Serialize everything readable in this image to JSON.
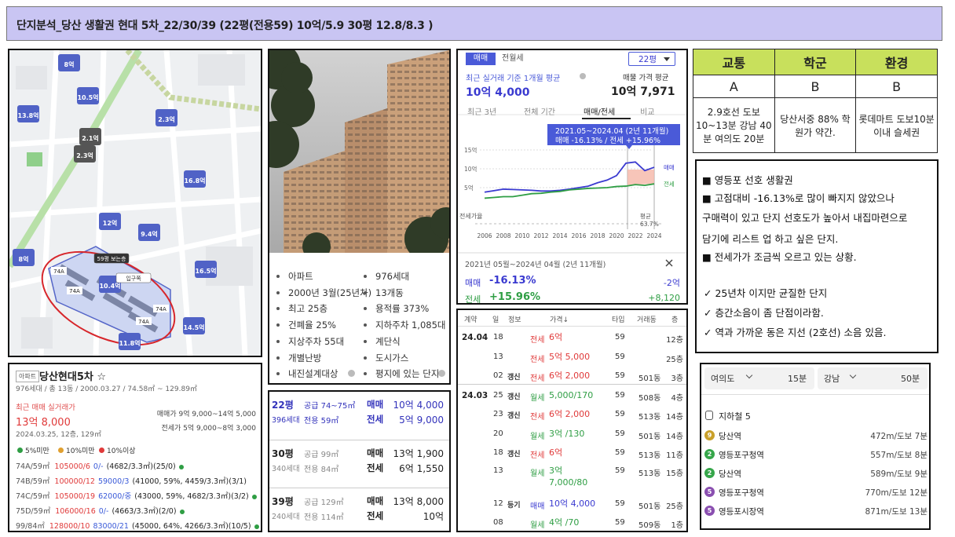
{
  "header": {
    "title": "단지분석_당산 생활권 현대 5차_22/30/39 (22평(전용59) 10억/5.9 30평 12.8/8.3 )"
  },
  "map": {
    "markers": [
      "13.8억",
      "8억",
      "10.5억",
      "2.3억",
      "2.1억",
      "2.3억",
      "16.8억",
      "12억",
      "9.4억",
      "8억",
      "16.5억",
      "10.4억",
      "14.5억",
      "11.8억"
    ],
    "building_labels": [
      "74A",
      "74A",
      "74A",
      "74A"
    ],
    "tags": [
      "59평 보는층",
      "입구쪽"
    ]
  },
  "facts": [
    [
      "아파트",
      "976세대"
    ],
    [
      "2000년 3월(25년차)",
      "13개동"
    ],
    [
      "최고 25층",
      "용적률 373%"
    ],
    [
      "건폐율 25%",
      "지하주차 1,085대"
    ],
    [
      "지상주차 55대",
      "계단식"
    ],
    [
      "개별난방",
      "도시가스"
    ],
    [
      "내진설계대상",
      "평지에 있는 단지"
    ]
  ],
  "market": {
    "tabs": [
      "매매",
      "전월세"
    ],
    "size": "22평",
    "recent_label": "최근 실거래 기준 1개월 평균",
    "recent_price": "10억 4,000",
    "listing_label": "매물 가격 평균",
    "listing_price": "10억 7,971",
    "periods": [
      "최근 3년",
      "전체 기간",
      "매매/전세",
      "비교"
    ],
    "chart": {
      "type": "line",
      "tooltip_period": "2021.05~2024.04 (2년 11개월)",
      "tooltip_change": "매매 -16.13% / 전세 +15.96%",
      "x": [
        2006,
        2007,
        2008,
        2009,
        2010,
        2011,
        2012,
        2013,
        2014,
        2015,
        2016,
        2017,
        2018,
        2019,
        2020,
        2021,
        2022,
        2023,
        2024
      ],
      "xlim": [
        2005,
        2025
      ],
      "xticks": [
        2006,
        2008,
        2010,
        2012,
        2014,
        2016,
        2018,
        2020,
        2022,
        2024
      ],
      "ylim": [
        0,
        17
      ],
      "yticks": [
        {
          "value": 15,
          "label": "15억"
        },
        {
          "value": 10,
          "label": "10억"
        },
        {
          "value": 5,
          "label": "5억"
        }
      ],
      "series": [
        {
          "name": "매매",
          "color": "#3a3ad0",
          "values": [
            3.8,
            4.2,
            4.6,
            4.5,
            4.4,
            4.3,
            4.1,
            4.1,
            4.3,
            4.6,
            5.0,
            5.4,
            6.3,
            7.0,
            8.2,
            11.5,
            11.8,
            9.5,
            10.4
          ]
        },
        {
          "name": "전세",
          "color": "#2f9e44",
          "values": [
            2.2,
            2.4,
            2.6,
            2.6,
            3.0,
            3.4,
            3.5,
            3.8,
            4.0,
            4.4,
            4.6,
            4.8,
            4.9,
            5.0,
            5.3,
            5.4,
            5.8,
            5.6,
            6.0
          ]
        }
      ],
      "ratio_label": "전세가율",
      "ratio_average": "평균 63.7%"
    },
    "summary": {
      "period": "2021년 05월~2024년 04월 (2년 11개월)",
      "rows": [
        {
          "label": "매매",
          "rate": "-16.13%",
          "amount": "-2억",
          "color": "#3a3ad0"
        },
        {
          "label": "전세",
          "rate": "+15.96%",
          "amount": "+8,120",
          "color": "#2f9e44"
        }
      ]
    }
  },
  "transactions": {
    "headers": [
      "계약",
      "일",
      "정보",
      "가격↓",
      "타입",
      "거래동",
      "층"
    ],
    "rows": [
      {
        "month": "24.04",
        "day": "18",
        "kind": "전세",
        "price": "6억",
        "type": "59",
        "floor": "12층"
      },
      {
        "day": "13",
        "kind": "전세",
        "price": "5억 5,000",
        "type": "59",
        "floor": "25층"
      },
      {
        "day": "02",
        "info": "갱신",
        "kind": "전세",
        "price": "6억 2,000",
        "type": "59",
        "building": "501동",
        "floor": "3층"
      },
      {
        "month": "24.03",
        "day": "25",
        "info": "갱신",
        "kind": "월세",
        "price": "5,000/170",
        "type": "59",
        "building": "508동",
        "floor": "4층"
      },
      {
        "day": "23",
        "info": "갱신",
        "kind": "전세",
        "price": "6억 2,000",
        "type": "59",
        "building": "513동",
        "floor": "14층"
      },
      {
        "day": "20",
        "kind": "월세",
        "price": "3억 /130",
        "type": "59",
        "building": "501동",
        "floor": "14층"
      },
      {
        "day": "18",
        "info": "갱신",
        "kind": "전세",
        "price": "6억",
        "type": "59",
        "building": "513동",
        "floor": "11층"
      },
      {
        "day": "13",
        "kind": "월세",
        "price": "3억 7,000/80",
        "type": "59",
        "building": "513동",
        "floor": "15층"
      },
      {
        "day": "12",
        "info": "등기",
        "kind": "매매",
        "price": "10억 4,000",
        "type": "59",
        "building": "501동",
        "floor": "25층"
      },
      {
        "day": "08",
        "kind": "월세",
        "price": "4억 /70",
        "type": "59",
        "building": "509동",
        "floor": "1층"
      }
    ]
  },
  "grades": {
    "headers": [
      "교통",
      "학군",
      "환경"
    ],
    "grades": [
      "A",
      "B",
      "B"
    ],
    "descriptions": [
      "2.9호선 도보10~13분 강남 40분 여의도 20분",
      "당산서중 88% 학원가 약간.",
      "롯데마트 도보10분이내 슬세권"
    ]
  },
  "notes": {
    "lines": [
      "■ 영등포 선호 생활권",
      "■ 고점대비 -16.13%로 많이 빠지지 않았으나",
      "구매력이 있고 단지 선호도가 높아서 내집마련으로",
      "담기에 리스트 업 하고 싶은 단지.",
      "■ 전세가가 조금씩 오르고 있는 상황."
    ],
    "checks": [
      "✓  25년차 이지만 균질한 단지",
      "✓  층간소음이 좀 단점이라함.",
      "✓  역과 가까운 동은 지선 (2호선) 소음 있음."
    ]
  },
  "complex": {
    "tag": "아파트",
    "name": "당산현대5차 ☆",
    "summary": "976세대 / 총 13동 / 2000.03.27 / 74.58㎡ ~ 129.89㎡",
    "recent_label": "최근 매매 실거래가",
    "recent_price": "13억 8,000",
    "recent_detail": "2024.03.25, 12층, 129㎡",
    "sale_range": "매매가 9억 9,000~14억 5,000",
    "jeonse_range": "전세가 5억 9,000~8억 3,000",
    "legend": [
      "5%미만",
      "10%미만",
      "10%이상"
    ],
    "rows": [
      {
        "type": "74A/59㎡",
        "sale": "105000/6",
        "jeonse": "0/-",
        "detail": "(4682/3.3㎡)(25/0)"
      },
      {
        "type": "74B/59㎡",
        "sale": "100000/12",
        "jeonse": "59000/3",
        "detail": "(41000, 59%, 4459/3.3㎡)(3/1)"
      },
      {
        "type": "74C/59㎡",
        "sale": "105000/19",
        "jeonse": "62000/중",
        "detail": "(43000, 59%, 4682/3.3㎡)(3/2)"
      },
      {
        "type": "75D/59㎡",
        "sale": "106000/16",
        "jeonse": "0/-",
        "detail": "(4663/3.3㎡)(2/0)"
      },
      {
        "type": "99/84㎡",
        "sale": "128000/10",
        "jeonse": "83000/21",
        "detail": "(45000, 64%, 4266/3.3㎡)(10/5)"
      }
    ]
  },
  "pricing": [
    {
      "pyeong": "22평",
      "units": "396세대",
      "supply": "공급 74~75㎡",
      "exclusive": "전용 59㎡",
      "sale_label": "매매",
      "sale": "10억 4,000",
      "jeonse_label": "전세",
      "jeonse": "5억 9,000"
    },
    {
      "pyeong": "30평",
      "units": "340세대",
      "supply": "공급 99㎡",
      "exclusive": "전용 84㎡",
      "sale_label": "매매",
      "sale": "13억 1,900",
      "jeonse_label": "전세",
      "jeonse": "6억 1,550"
    },
    {
      "pyeong": "39평",
      "units": "240세대",
      "supply": "공급 129㎡",
      "exclusive": "전용 114㎡",
      "sale_label": "매매",
      "sale": "13억 8,000",
      "jeonse_label": "전세",
      "jeonse": "10억"
    }
  ],
  "transit": {
    "commute": [
      {
        "dest": "여의도",
        "time": "15분"
      },
      {
        "dest": "강남",
        "time": "50분"
      }
    ],
    "subway_label": "지하철 5",
    "stations": [
      {
        "line": "9",
        "color": "#c9a02a",
        "name": "당산역",
        "distance": "472m/도보 7분"
      },
      {
        "line": "2",
        "color": "#36a64a",
        "name": "영등포구청역",
        "distance": "557m/도보 8분"
      },
      {
        "line": "2",
        "color": "#36a64a",
        "name": "당산역",
        "distance": "589m/도보 9분"
      },
      {
        "line": "5",
        "color": "#8a4fb0",
        "name": "영등포구청역",
        "distance": "770m/도보 12분"
      },
      {
        "line": "5",
        "color": "#8a4fb0",
        "name": "영등포시장역",
        "distance": "871m/도보 13분"
      }
    ]
  }
}
